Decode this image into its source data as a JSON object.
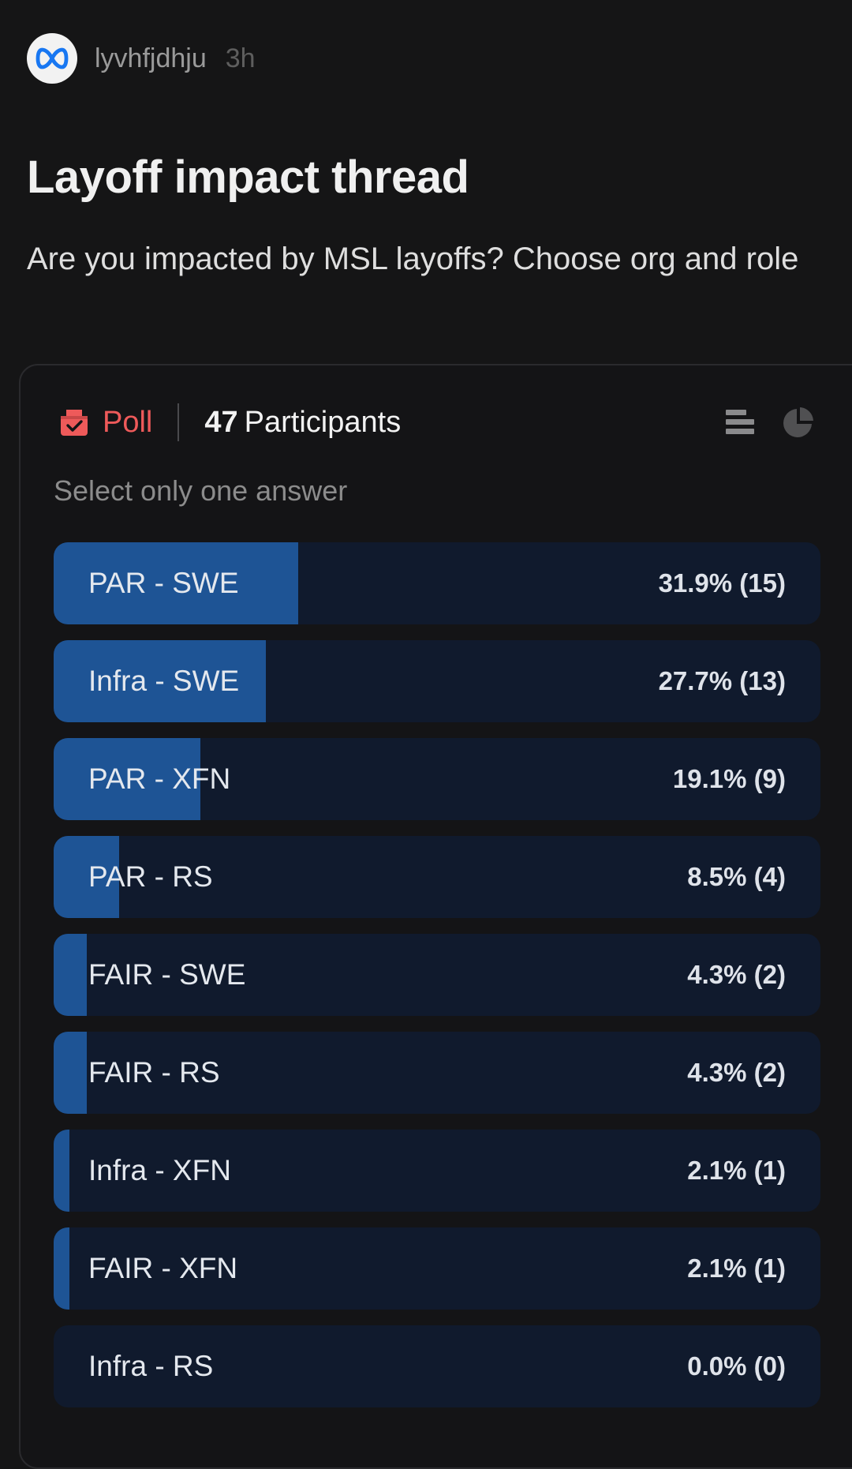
{
  "post": {
    "author": "lyvhfjdhju",
    "time": "3h",
    "title": "Layoff impact thread",
    "description": "Are you impacted by MSL layoffs? Choose org and role"
  },
  "poll": {
    "label": "Poll",
    "participants_count": "47",
    "participants_label": "Participants",
    "instruction": "Select only one answer",
    "colors": {
      "accent": "#ee5a5a",
      "bar_fill": "#1e5495",
      "bar_track": "#101a2d"
    },
    "options": [
      {
        "label": "PAR - SWE",
        "result": "31.9% (15)",
        "percent": 31.9
      },
      {
        "label": "Infra - SWE",
        "result": "27.7% (13)",
        "percent": 27.7
      },
      {
        "label": "PAR - XFN",
        "result": "19.1% (9)",
        "percent": 19.1
      },
      {
        "label": "PAR - RS",
        "result": "8.5% (4)",
        "percent": 8.5
      },
      {
        "label": "FAIR - SWE",
        "result": "4.3% (2)",
        "percent": 4.3
      },
      {
        "label": "FAIR - RS",
        "result": "4.3% (2)",
        "percent": 4.3
      },
      {
        "label": "Infra - XFN",
        "result": "2.1% (1)",
        "percent": 2.1
      },
      {
        "label": "FAIR - XFN",
        "result": "2.1% (1)",
        "percent": 2.1
      },
      {
        "label": "Infra - RS",
        "result": "0.0% (0)",
        "percent": 0
      }
    ]
  },
  "icons": {
    "avatar": "meta-logo-icon",
    "poll": "ballot-box-icon",
    "list_view": "bar-list-icon",
    "pie_view": "pie-chart-icon"
  }
}
